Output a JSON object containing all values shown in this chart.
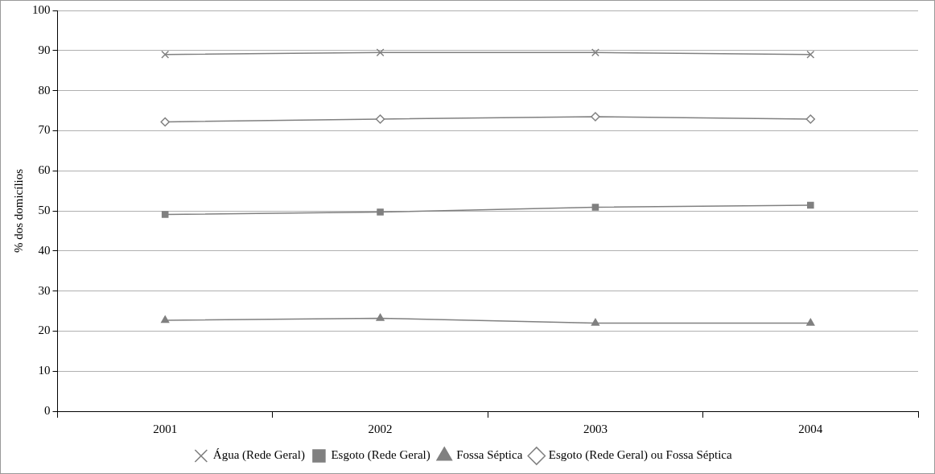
{
  "chart_data": {
    "type": "line",
    "ylabel": "% dos domicílios",
    "categories": [
      "2001",
      "2002",
      "2003",
      "2004"
    ],
    "series": [
      {
        "name": "Água (Rede Geral)",
        "color": "#808080",
        "marker": "cross",
        "values": [
          89,
          89.5,
          89.5,
          89
        ]
      },
      {
        "name": "Esgoto (Rede Geral)",
        "color": "#808080",
        "marker": "square",
        "values": [
          49.1,
          49.7,
          50.9,
          51.4
        ]
      },
      {
        "name": "Fossa Séptica",
        "color": "#808080",
        "marker": "triangle",
        "values": [
          22.7,
          23.2,
          22,
          22
        ]
      },
      {
        "name": "Esgoto (Rede Geral) ou Fossa Séptica",
        "color": "#808080",
        "marker": "diamond",
        "values": [
          72.2,
          72.9,
          73.5,
          72.9
        ]
      }
    ],
    "ylim": [
      0,
      100
    ],
    "yticks": [
      0,
      10,
      20,
      30,
      40,
      50,
      60,
      70,
      80,
      90,
      100
    ],
    "grid": "y",
    "legend": "bottom"
  }
}
